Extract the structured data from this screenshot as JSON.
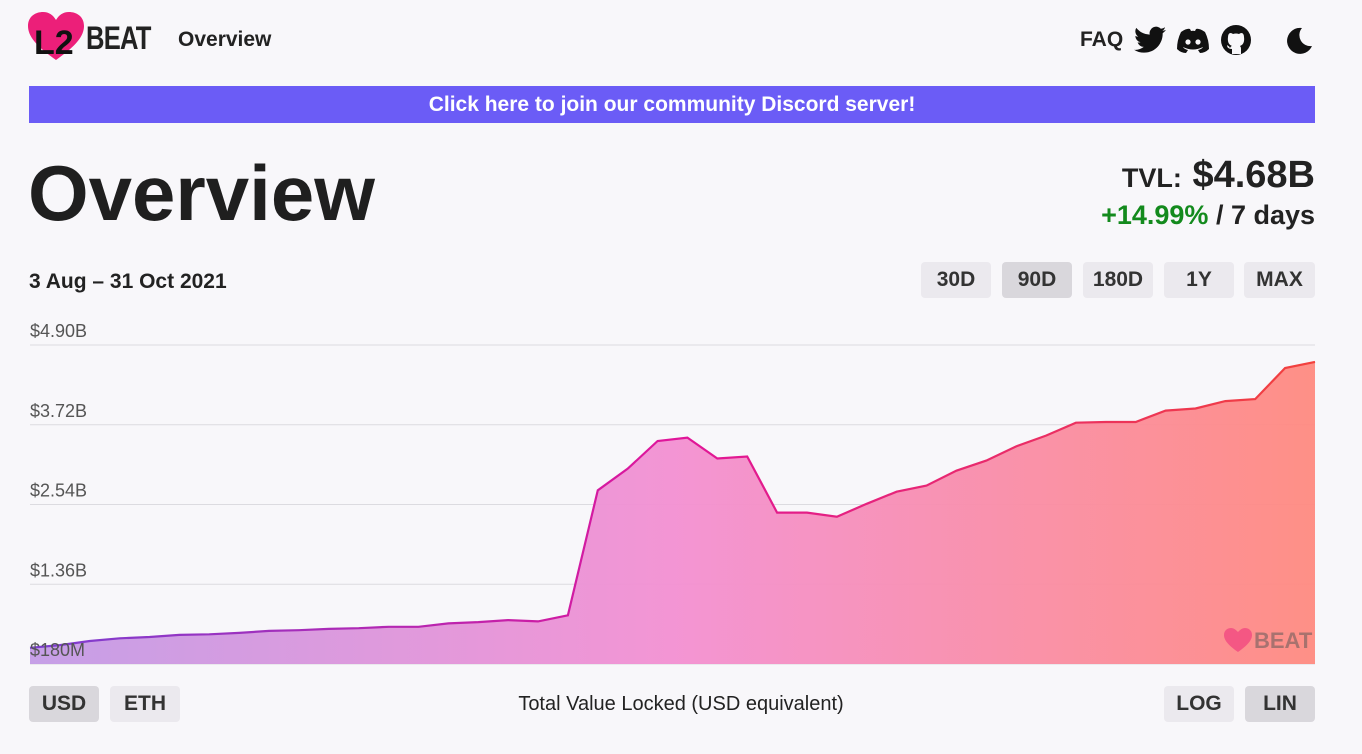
{
  "header": {
    "logo": "BEAT",
    "nav": "Overview",
    "faq": "FAQ"
  },
  "banner": "Click here to join our community Discord server!",
  "page_title": "Overview",
  "tvl": {
    "label": "TVL:",
    "value": "$4.68B",
    "change": "+14.99%",
    "period": "/ 7 days"
  },
  "date_range": "3 Aug – 31 Oct 2021",
  "range_buttons": [
    "30D",
    "90D",
    "180D",
    "1Y",
    "MAX"
  ],
  "currency_buttons": [
    "USD",
    "ETH"
  ],
  "scale_buttons": [
    "LOG",
    "LIN"
  ],
  "chart_data": {
    "type": "area",
    "caption": "Total Value Locked (USD equivalent)",
    "watermark": "BEAT",
    "ylim": [
      0.18,
      4.9
    ],
    "yticks": [
      {
        "value": 0.18,
        "label": "$180M"
      },
      {
        "value": 1.36,
        "label": "$1.36B"
      },
      {
        "value": 2.54,
        "label": "$2.54B"
      },
      {
        "value": 3.72,
        "label": "$3.72B"
      },
      {
        "value": 4.9,
        "label": "$4.90B"
      }
    ],
    "grid": true,
    "colors": [
      "#7b3fd1",
      "#e0159a",
      "#f2413c"
    ],
    "fill_colors": [
      "#c39be6",
      "#f390d2",
      "#ff8a80"
    ],
    "values": [
      0.42,
      0.46,
      0.52,
      0.56,
      0.58,
      0.61,
      0.62,
      0.64,
      0.67,
      0.68,
      0.7,
      0.71,
      0.73,
      0.73,
      0.78,
      0.8,
      0.83,
      0.81,
      0.9,
      2.75,
      3.07,
      3.48,
      3.53,
      3.22,
      3.25,
      2.42,
      2.42,
      2.36,
      2.55,
      2.73,
      2.82,
      3.04,
      3.19,
      3.4,
      3.56,
      3.75,
      3.76,
      3.76,
      3.93,
      3.96,
      4.07,
      4.1,
      4.56,
      4.65
    ]
  }
}
